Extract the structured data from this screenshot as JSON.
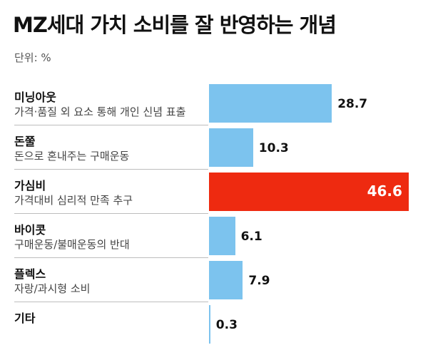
{
  "title": "MZ세대 가치 소비를 잘 반영하는 개념",
  "unit_label": "단위: %",
  "colors": {
    "normal": "#7cc3ee",
    "highlight": "#ee2a10"
  },
  "chart_data": {
    "type": "bar",
    "orientation": "horizontal",
    "title": "MZ세대 가치 소비를 잘 반영하는 개념",
    "unit": "%",
    "xlim": [
      0,
      100
    ],
    "grid": false,
    "legend": "none",
    "categories": [
      "미닝아웃",
      "돈쭐",
      "가심비",
      "바이콧",
      "플렉스",
      "기타"
    ],
    "descriptions": [
      "가격·품질 외 요소 통해 개인 신념 표출",
      "돈으로 혼내주는 구매운동",
      "가격대비 심리적 만족 추구",
      "구매운동/불매운동의 반대",
      "자랑/과시형 소비",
      ""
    ],
    "values": [
      28.7,
      10.3,
      46.6,
      6.1,
      7.9,
      0.3
    ],
    "value_labels": [
      "28.7",
      "10.3",
      "46.6",
      "6.1",
      "7.9",
      "0.3"
    ],
    "highlight_index": 2
  }
}
